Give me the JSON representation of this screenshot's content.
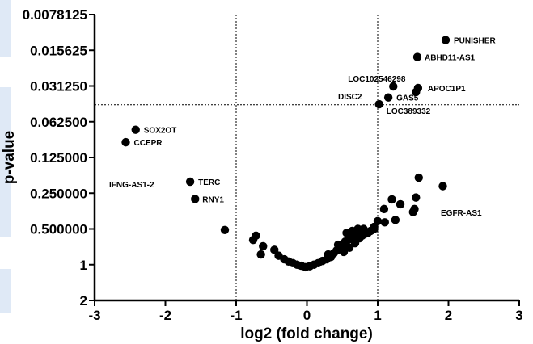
{
  "chart_data": {
    "type": "scatter",
    "xlabel": "log2 (fold change)",
    "ylabel": "p-value",
    "xlim": [
      -3,
      3
    ],
    "y_scale": "log2, inverted",
    "ylim": [
      2,
      0.0078125
    ],
    "x_ticks": [
      "-3",
      "-2",
      "-1",
      "0",
      "1",
      "2",
      "3"
    ],
    "y_ticks": [
      "0.0078125",
      "0.015625",
      "0.031250",
      "0.062500",
      "0.125000",
      "0.250000",
      "0.500000",
      "1",
      "2"
    ],
    "threshold_lines": {
      "x": [
        -1,
        1
      ],
      "y": 0.045
    },
    "colors": {
      "points": "#000000",
      "lines": "#000000"
    },
    "grid": false,
    "points": [
      {
        "label": "PUNISHER",
        "x": 1.96,
        "y": 0.0128
      },
      {
        "label": "ABHD11-AS1",
        "x": 1.56,
        "y": 0.0178
      },
      {
        "label": "LOC102546298",
        "x": 1.22,
        "y": 0.0315
      },
      {
        "label": "APOC1P1",
        "x": 1.57,
        "y": 0.0325
      },
      {
        "label": "",
        "x": 1.54,
        "y": 0.0352
      },
      {
        "label": "GAS5",
        "x": 1.15,
        "y": 0.039
      },
      {
        "label": "DISC2",
        "x": "",
        "y": ""
      },
      {
        "label": "LOC389332",
        "x": 1.02,
        "y": 0.0445
      },
      {
        "label": "SOX2OT",
        "x": -2.42,
        "y": 0.073
      },
      {
        "label": "CCEPR",
        "x": -2.56,
        "y": 0.093
      },
      {
        "label": "TERC",
        "x": -1.65,
        "y": 0.2
      },
      {
        "label": "IFNG-AS1-2",
        "x": "",
        "y": ""
      },
      {
        "label": "RNY1",
        "x": -1.58,
        "y": 0.28
      },
      {
        "label": "EGFR-AS1",
        "x": "",
        "y": ""
      },
      {
        "x": 1.58,
        "y": 0.185
      },
      {
        "x": 1.92,
        "y": 0.218
      },
      {
        "x": 1.54,
        "y": 0.272
      },
      {
        "x": 1.2,
        "y": 0.282
      },
      {
        "x": 1.32,
        "y": 0.31
      },
      {
        "x": 1.09,
        "y": 0.34
      },
      {
        "x": 1.52,
        "y": 0.34
      },
      {
        "x": 1.5,
        "y": 0.36
      },
      {
        "x": 1.25,
        "y": 0.42
      },
      {
        "x": 1.0,
        "y": 0.43
      },
      {
        "x": 0.95,
        "y": 0.48
      },
      {
        "x": 1.1,
        "y": 0.44
      },
      {
        "x": -1.16,
        "y": 0.51
      },
      {
        "x": -0.72,
        "y": 0.57
      },
      {
        "x": -0.76,
        "y": 0.62
      },
      {
        "x": -0.62,
        "y": 0.7
      },
      {
        "x": -0.65,
        "y": 0.82
      },
      {
        "x": -0.46,
        "y": 0.75
      },
      {
        "x": -0.4,
        "y": 0.84
      },
      {
        "x": -0.32,
        "y": 0.9
      },
      {
        "x": -0.26,
        "y": 0.94
      },
      {
        "x": -0.2,
        "y": 0.97
      },
      {
        "x": -0.14,
        "y": 1.0
      },
      {
        "x": -0.08,
        "y": 1.02
      },
      {
        "x": -0.02,
        "y": 1.05
      },
      {
        "x": 0.04,
        "y": 1.03
      },
      {
        "x": 0.1,
        "y": 1.0
      },
      {
        "x": 0.16,
        "y": 0.97
      },
      {
        "x": 0.22,
        "y": 0.93
      },
      {
        "x": 0.28,
        "y": 0.9
      },
      {
        "x": 0.34,
        "y": 0.86
      },
      {
        "x": 0.38,
        "y": 0.8
      },
      {
        "x": 0.42,
        "y": 0.76
      },
      {
        "x": 0.46,
        "y": 0.72
      },
      {
        "x": 0.5,
        "y": 0.68
      },
      {
        "x": 0.54,
        "y": 0.64
      },
      {
        "x": 0.58,
        "y": 0.62
      },
      {
        "x": 0.52,
        "y": 0.78
      },
      {
        "x": 0.6,
        "y": 0.72
      },
      {
        "x": 0.62,
        "y": 0.6
      },
      {
        "x": 0.66,
        "y": 0.58
      },
      {
        "x": 0.7,
        "y": 0.56
      },
      {
        "x": 0.68,
        "y": 0.66
      },
      {
        "x": 0.74,
        "y": 0.6
      },
      {
        "x": 0.78,
        "y": 0.57
      },
      {
        "x": 0.82,
        "y": 0.55
      },
      {
        "x": 0.86,
        "y": 0.54
      },
      {
        "x": 0.9,
        "y": 0.52
      },
      {
        "x": 0.56,
        "y": 0.54
      },
      {
        "x": 0.64,
        "y": 0.52
      },
      {
        "x": 0.72,
        "y": 0.5
      },
      {
        "x": 0.8,
        "y": 0.5
      },
      {
        "x": 0.95,
        "y": 0.5
      },
      {
        "x": 0.3,
        "y": 0.82
      },
      {
        "x": 0.44,
        "y": 0.68
      }
    ]
  }
}
